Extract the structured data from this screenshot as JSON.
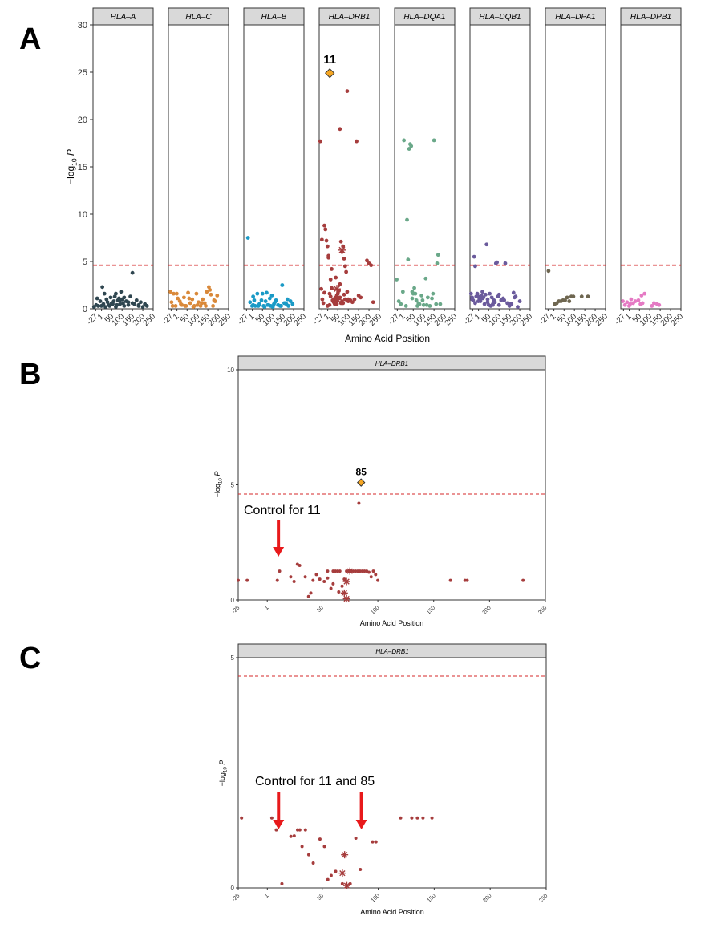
{
  "panel_labels": {
    "a": "A",
    "b": "B",
    "c": "C"
  },
  "colors": {
    "threshold": "#d62728",
    "strip_fill": "#d9d9d9",
    "highlight": "#f5a623",
    "arrow": "#e8191b",
    "HLA-A": "#2f4650",
    "HLA-C": "#d9893a",
    "HLA-B": "#1a9ac6",
    "HLA-DRB1": "#a63d3d",
    "HLA-DQA1": "#6aa889",
    "HLA-DQB1": "#6a5a9c",
    "HLA-DPA1": "#6e6650",
    "HLA-DPB1": "#e57ac4"
  },
  "chart_data": [
    {
      "id": "A",
      "type": "scatter",
      "facets": [
        "HLA–A",
        "HLA–C",
        "HLA–B",
        "HLA–DRB1",
        "HLA–DQA1",
        "HLA–DQB1",
        "HLA–DPA1",
        "HLA–DPB1"
      ],
      "facet_color_keys": [
        "HLA-A",
        "HLA-C",
        "HLA-B",
        "HLA-DRB1",
        "HLA-DQA1",
        "HLA-DQB1",
        "HLA-DPA1",
        "HLA-DPB1"
      ],
      "xlabel": "Amino Acid Position",
      "ylabel": "−log",
      "ylabel_sub": "10",
      "ylabel_suffix": "P",
      "xlim": [
        -40,
        250
      ],
      "ylim": [
        0,
        30
      ],
      "yticks": [
        0,
        5,
        10,
        15,
        20,
        25,
        30
      ],
      "xticks": [
        "-27",
        "1",
        "50",
        "100",
        "150",
        "200",
        "250"
      ],
      "xtick_values": [
        -27,
        1,
        50,
        100,
        150,
        200,
        250
      ],
      "threshold": 4.6,
      "annotation": {
        "facet": 3,
        "x": 11,
        "y": 24.9,
        "label": "11"
      },
      "series": [
        {
          "name": "HLA–A",
          "x": [
            -35,
            -25,
            -15,
            -5,
            5,
            10,
            20,
            25,
            30,
            40,
            45,
            55,
            60,
            65,
            70,
            75,
            80,
            85,
            90,
            95,
            100,
            105,
            110,
            120,
            130,
            140,
            150,
            160,
            170,
            180,
            190,
            200,
            210,
            220,
            -20,
            0,
            15,
            35,
            50,
            70,
            90,
            110,
            130,
            150,
            180
          ],
          "y": [
            0.2,
            0.4,
            0.3,
            0.8,
            2.3,
            0.5,
            0.2,
            1.0,
            0.7,
            0.3,
            1.2,
            0.5,
            0.8,
            1.3,
            1.6,
            0.4,
            0.9,
            1.1,
            0.5,
            1.8,
            1.0,
            0.6,
            0.3,
            0.8,
            0.7,
            1.3,
            3.8,
            0.5,
            0.9,
            0.4,
            0.7,
            0.2,
            0.5,
            0.3,
            1.1,
            0.3,
            1.6,
            0.4,
            0.6,
            0.2,
            0.9,
            1.2,
            0.4,
            0.6,
            0.3
          ]
        },
        {
          "name": "HLA–C",
          "x": [
            -30,
            -25,
            -15,
            -5,
            5,
            15,
            25,
            35,
            45,
            55,
            65,
            75,
            85,
            95,
            105,
            115,
            125,
            135,
            145,
            155,
            165,
            175,
            185,
            195,
            -20,
            0,
            20,
            40,
            60,
            80,
            100,
            120,
            140,
            160,
            180
          ],
          "y": [
            1.8,
            0.7,
            1.6,
            0.3,
            1.1,
            0.8,
            0.4,
            1.2,
            0.3,
            1.7,
            0.6,
            1.0,
            0.3,
            1.6,
            0.7,
            0.3,
            1.0,
            0.6,
            1.8,
            2.3,
            1.5,
            0.3,
            0.8,
            1.4,
            0.3,
            1.6,
            0.5,
            0.3,
            1.1,
            0.2,
            0.4,
            0.6,
            0.3,
            2.0,
            0.9
          ]
        },
        {
          "name": "HLA–B",
          "x": [
            -20,
            -10,
            0,
            5,
            10,
            15,
            25,
            35,
            45,
            50,
            55,
            65,
            70,
            75,
            85,
            90,
            95,
            100,
            105,
            115,
            125,
            135,
            145,
            155,
            165,
            175,
            185,
            195,
            5,
            30,
            60,
            80,
            110,
            140,
            160,
            170
          ],
          "y": [
            7.5,
            0.7,
            0.3,
            1.3,
            0.9,
            0.3,
            1.6,
            0.5,
            0.9,
            1.6,
            0.3,
            0.8,
            1.7,
            0.4,
            1.1,
            0.3,
            1.4,
            0.2,
            0.5,
            0.9,
            0.4,
            0.3,
            2.5,
            0.6,
            0.5,
            0.3,
            0.8,
            0.5,
            0.4,
            0.3,
            0.2,
            0.4,
            0.7,
            0.3,
            0.6,
            1.0
          ]
        },
        {
          "name": "HLA–DRB1",
          "x": [
            -35,
            -30,
            -25,
            -20,
            -15,
            -10,
            -5,
            0,
            5,
            10,
            15,
            20,
            25,
            30,
            35,
            40,
            45,
            50,
            55,
            60,
            65,
            70,
            75,
            80,
            85,
            90,
            95,
            100,
            110,
            120,
            140,
            150,
            160,
            190,
            200,
            210,
            -27,
            5,
            20,
            40,
            60,
            80,
            100,
            130,
            220,
            10,
            40,
            60,
            75,
            95,
            15,
            30,
            45,
            55,
            70,
            85,
            0,
            35,
            65,
            -15,
            25
          ],
          "y": [
            17.7,
            2.1,
            1.0,
            0.6,
            8.8,
            8.4,
            7.2,
            6.6,
            5.4,
            1.6,
            3.1,
            2.2,
            0.9,
            0.7,
            1.1,
            1.2,
            1.4,
            1.6,
            1.9,
            19.0,
            7.1,
            6.0,
            6.6,
            5.3,
            4.5,
            3.9,
            23.0,
            1.0,
            0.9,
            0.7,
            17.7,
            1.4,
            1.2,
            5.1,
            4.8,
            4.6,
            7.3,
            5.6,
            4.2,
            3.3,
            2.6,
            1.5,
            0.8,
            1.0,
            0.7,
            0.4,
            0.9,
            1.2,
            0.6,
            1.8,
            1.3,
            0.7,
            0.5,
            1.1,
            0.8,
            1.0,
            0.3,
            0.5,
            0.6,
            1.7,
            0.9
          ],
          "stars": [
            {
              "x": 45,
              "y": 2.1
            },
            {
              "x": 47,
              "y": 1.0
            },
            {
              "x": 70,
              "y": 6.2
            }
          ]
        },
        {
          "name": "HLA–DQA1",
          "x": [
            -30,
            -10,
            5,
            20,
            25,
            30,
            35,
            40,
            45,
            50,
            55,
            60,
            65,
            70,
            80,
            90,
            100,
            110,
            120,
            130,
            140,
            150,
            160,
            170,
            -20,
            0,
            15,
            45,
            75,
            95,
            115,
            145,
            165,
            180
          ],
          "y": [
            3.1,
            0.5,
            17.8,
            9.4,
            5.2,
            16.9,
            17.4,
            17.2,
            1.1,
            1.6,
            2.2,
            1.6,
            0.9,
            0.3,
            0.5,
            1.4,
            0.4,
            3.2,
            1.2,
            0.3,
            1.1,
            17.8,
            0.5,
            5.7,
            0.8,
            1.8,
            0.3,
            1.8,
            0.6,
            0.9,
            0.4,
            1.6,
            4.8,
            0.5
          ]
        },
        {
          "name": "HLA–DQB1",
          "x": [
            -35,
            -30,
            -25,
            -20,
            -15,
            -10,
            -5,
            0,
            5,
            10,
            15,
            20,
            25,
            30,
            35,
            40,
            45,
            50,
            55,
            60,
            65,
            70,
            75,
            80,
            85,
            90,
            95,
            100,
            110,
            120,
            130,
            140,
            150,
            160,
            170,
            180,
            190,
            200,
            -30,
            -15,
            0,
            20,
            45,
            70,
            100,
            125,
            155,
            175
          ],
          "y": [
            1.6,
            1.2,
            0.9,
            5.5,
            4.5,
            1.3,
            1.6,
            1.3,
            1.1,
            0.8,
            1.4,
            1.8,
            1.2,
            0.5,
            1.5,
            6.8,
            1.0,
            0.4,
            1.6,
            0.3,
            1.2,
            0.5,
            0.9,
            0.7,
            4.8,
            4.9,
            1.3,
            0.4,
            0.9,
            1.1,
            4.8,
            0.6,
            0.3,
            0.5,
            1.7,
            1.3,
            0.2,
            0.8,
            1.0,
            0.6,
            0.8,
            1.1,
            0.7,
            0.4,
            1.5,
            0.9,
            0.5,
            1.2
          ]
        },
        {
          "name": "HLA–DPA1",
          "x": [
            -25,
            5,
            15,
            25,
            35,
            45,
            55,
            65,
            75,
            85,
            95,
            135,
            165
          ],
          "y": [
            4.0,
            0.5,
            0.6,
            0.8,
            0.8,
            0.9,
            0.9,
            1.2,
            0.8,
            1.3,
            1.3,
            1.3,
            1.3
          ]
        },
        {
          "name": "HLA–DPB1",
          "x": [
            -30,
            -20,
            -10,
            0,
            5,
            10,
            20,
            30,
            45,
            55,
            60,
            65,
            75,
            110,
            120,
            135,
            145
          ],
          "y": [
            0.8,
            0.4,
            0.7,
            0.3,
            0.5,
            1.0,
            0.6,
            0.8,
            0.9,
            0.5,
            1.4,
            0.6,
            1.6,
            0.3,
            0.6,
            0.5,
            0.4
          ]
        }
      ]
    },
    {
      "id": "B",
      "type": "scatter",
      "facets": [
        "HLA–DRB1"
      ],
      "xlabel": "Amino Acid Position",
      "ylabel": "−log",
      "ylabel_sub": "10",
      "ylabel_suffix": "P",
      "xlim": [
        -25,
        250
      ],
      "ylim": [
        0,
        10
      ],
      "yticks": [
        0,
        5,
        10
      ],
      "xticks": [
        "-25",
        "1",
        "50",
        "100",
        "150",
        "200",
        "250"
      ],
      "xtick_values": [
        -25,
        1,
        50,
        100,
        150,
        200,
        250
      ],
      "threshold": 4.6,
      "annotation": {
        "x": 85,
        "y": 5.1,
        "label": "85"
      },
      "arrow": {
        "label": "Control for 11",
        "x": 11
      },
      "series": [
        {
          "name": "HLA–DRB1",
          "x": [
            -25,
            -17,
            10,
            12,
            22,
            25,
            28,
            30,
            35,
            38,
            42,
            45,
            48,
            52,
            55,
            58,
            60,
            62,
            64,
            66,
            68,
            70,
            72,
            74,
            76,
            78,
            80,
            82,
            84,
            86,
            88,
            90,
            92,
            94,
            96,
            98,
            100,
            165,
            178,
            180,
            230,
            40,
            55,
            60,
            65,
            83
          ],
          "y": [
            0.85,
            0.85,
            0.85,
            1.25,
            1.0,
            0.8,
            1.55,
            1.5,
            1.0,
            0.15,
            0.85,
            1.1,
            0.9,
            0.8,
            1.25,
            0.5,
            1.25,
            1.25,
            1.25,
            1.25,
            0.6,
            0.9,
            1.25,
            1.25,
            1.25,
            1.25,
            1.25,
            1.25,
            1.25,
            1.25,
            1.25,
            1.25,
            1.2,
            1.0,
            1.25,
            1.1,
            0.85,
            0.85,
            0.85,
            0.85,
            0.85,
            0.3,
            0.95,
            0.7,
            0.35,
            4.2
          ],
          "stars": [
            {
              "x": 72,
              "y": 0.8
            },
            {
              "x": 70,
              "y": 0.3
            },
            {
              "x": 72,
              "y": 0.05
            },
            {
              "x": 75,
              "y": 1.25
            }
          ]
        }
      ]
    },
    {
      "id": "C",
      "type": "scatter",
      "facets": [
        "HLA–DRB1"
      ],
      "xlabel": "Amino Acid Position",
      "ylabel": "−log",
      "ylabel_sub": "10",
      "ylabel_suffix": "P",
      "xlim": [
        -25,
        250
      ],
      "ylim": [
        0,
        5
      ],
      "yticks": [
        0,
        5
      ],
      "xticks": [
        "-25",
        "1",
        "50",
        "100",
        "150",
        "200",
        "250"
      ],
      "xtick_values": [
        -25,
        1,
        50,
        100,
        150,
        200,
        250
      ],
      "threshold": 4.6,
      "arrows": [
        {
          "label": "Control for 11 and 85",
          "x": 11
        },
        {
          "x": 85
        }
      ],
      "series": [
        {
          "name": "HLA–DRB1",
          "x": [
            -22,
            5,
            9,
            14,
            22,
            25,
            28,
            30,
            32,
            35,
            38,
            42,
            48,
            52,
            55,
            58,
            62,
            68,
            75,
            80,
            84,
            95,
            98,
            120,
            130,
            135,
            140,
            148
          ],
          "y": [
            1.52,
            1.52,
            1.26,
            0.09,
            1.12,
            1.13,
            1.26,
            1.26,
            0.9,
            1.26,
            0.72,
            0.54,
            1.06,
            0.9,
            0.18,
            0.27,
            0.36,
            0.09,
            0.09,
            1.08,
            0.4,
            1.0,
            1.0,
            1.52,
            1.52,
            1.52,
            1.52,
            1.52
          ],
          "stars": [
            {
              "x": 70,
              "y": 0.72
            },
            {
              "x": 68,
              "y": 0.32
            },
            {
              "x": 72,
              "y": 0.05
            }
          ]
        }
      ]
    }
  ]
}
